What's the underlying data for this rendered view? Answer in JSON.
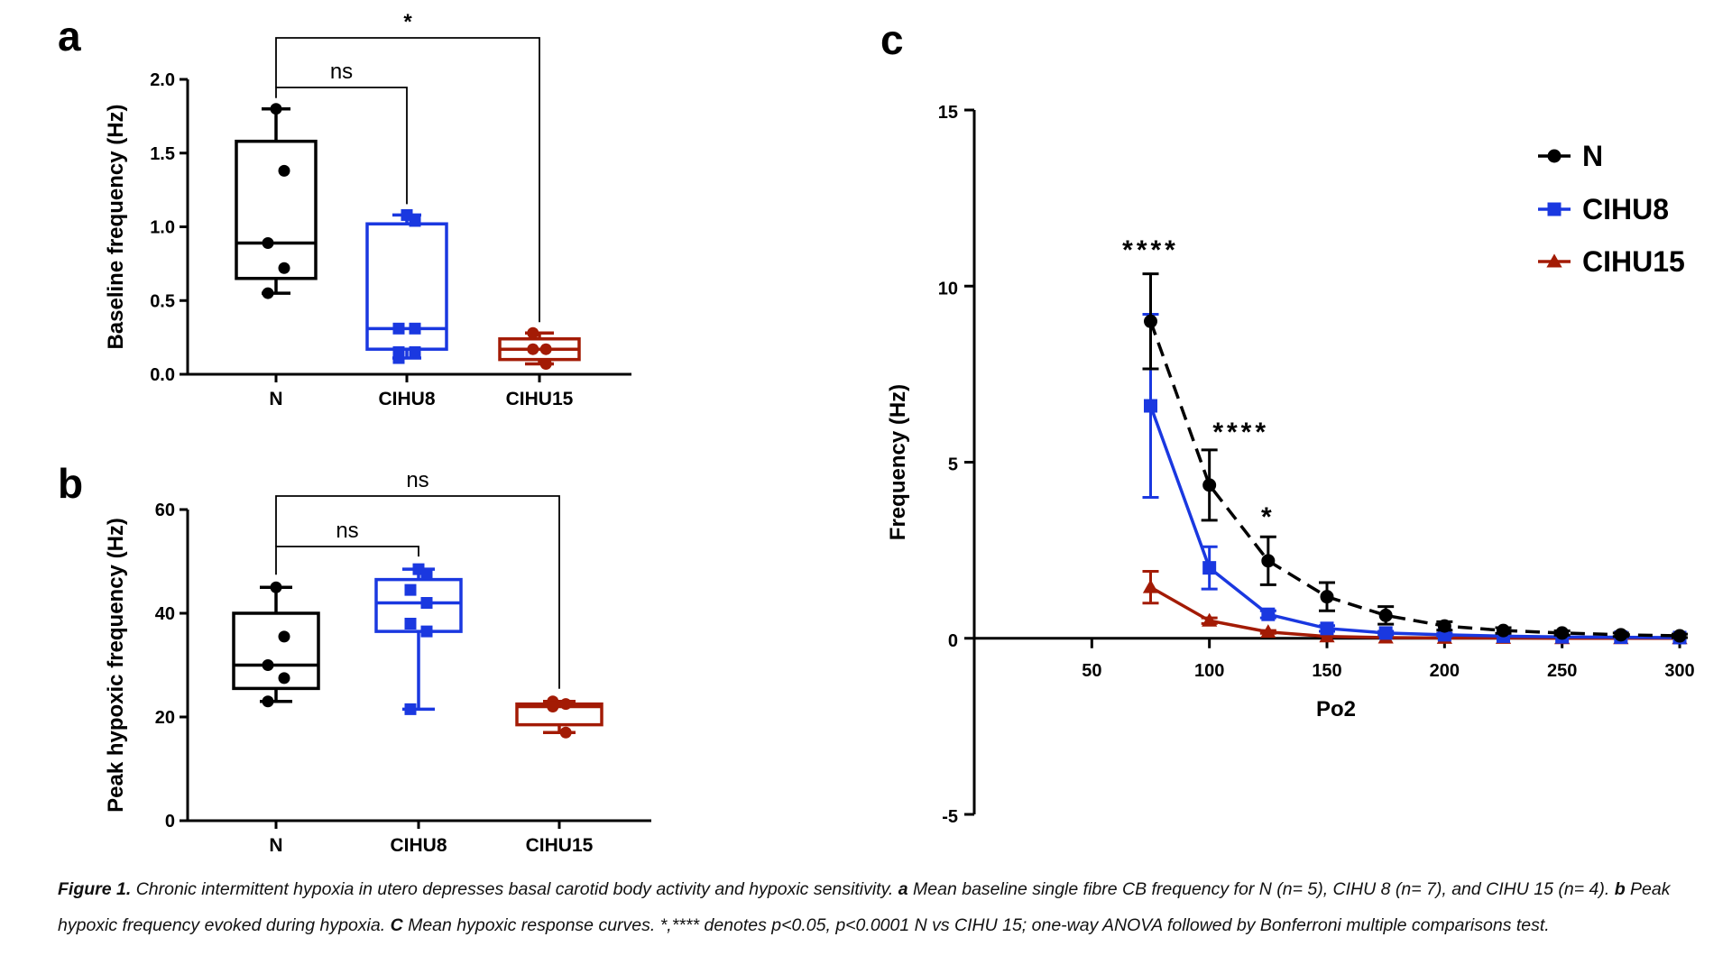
{
  "figure": {
    "panels": [
      "a",
      "b",
      "c"
    ]
  },
  "colors": {
    "N": "#000000",
    "CIHU8": "#1a38e0",
    "CIHU15": "#a31b05"
  },
  "caption": {
    "label": "Figure 1.",
    "part1": " Chronic intermittent hypoxia in utero depresses basal carotid body activity and hypoxic sensitivity. ",
    "a_label": "a",
    "part2": " Mean baseline single fibre CB frequency for N (n= 5), CIHU 8 (n= 7), and CIHU 15 (n= 4). ",
    "b_label": "b",
    "part3": " Peak hypoxic frequency evoked during hypoxia. ",
    "c_label": "C",
    "part4": "   Mean hypoxic response curves. *,**** denotes p<0.05, p<0.0001 N vs CIHU 15; one-way ANOVA followed by Bonferroni multiple comparisons test."
  },
  "chart_data": [
    {
      "panel": "a",
      "type": "box",
      "ylabel": "Baseline frequency (Hz)",
      "ylim": [
        0,
        2.0
      ],
      "yticks": [
        "0.0",
        "0.5",
        "1.0",
        "1.5",
        "2.0"
      ],
      "categories": [
        "N",
        "CIHU8",
        "CIHU15"
      ],
      "boxes": [
        {
          "name": "N",
          "min": 0.55,
          "q1": 0.65,
          "median": 0.89,
          "q3": 1.58,
          "max": 1.8,
          "points": [
            1.8,
            1.38,
            0.89,
            0.72,
            0.55
          ],
          "marker": "circle"
        },
        {
          "name": "CIHU8",
          "min": 0.11,
          "q1": 0.17,
          "median": 0.31,
          "q3": 1.02,
          "max": 1.08,
          "points": [
            1.08,
            1.04,
            0.31,
            0.31,
            0.15,
            0.15,
            0.11
          ],
          "marker": "square"
        },
        {
          "name": "CIHU15",
          "min": 0.07,
          "q1": 0.1,
          "median": 0.17,
          "q3": 0.24,
          "max": 0.28,
          "points": [
            0.28,
            0.17,
            0.17,
            0.07
          ],
          "marker": "circle"
        }
      ],
      "comparisons": [
        {
          "from": "N",
          "to": "CIHU8",
          "label": "ns"
        },
        {
          "from": "N",
          "to": "CIHU15",
          "label": "*"
        }
      ]
    },
    {
      "panel": "b",
      "type": "box",
      "ylabel": "Peak hypoxic frequency (Hz)",
      "ylim": [
        0,
        60
      ],
      "yticks": [
        "0",
        "20",
        "40",
        "60"
      ],
      "categories": [
        "N",
        "CIHU8",
        "CIHU15"
      ],
      "boxes": [
        {
          "name": "N",
          "min": 23.0,
          "q1": 25.5,
          "median": 30.0,
          "q3": 40.0,
          "max": 45.0,
          "points": [
            45.0,
            35.5,
            30.0,
            27.5,
            23.0
          ],
          "marker": "circle"
        },
        {
          "name": "CIHU8",
          "min": 21.5,
          "q1": 36.5,
          "median": 42.0,
          "q3": 46.5,
          "max": 48.5,
          "points": [
            48.5,
            47.5,
            44.5,
            42.0,
            38.0,
            36.5,
            21.5
          ],
          "marker": "square"
        },
        {
          "name": "CIHU15",
          "min": 17.0,
          "q1": 18.5,
          "median": 22.0,
          "q3": 22.5,
          "max": 23.0,
          "points": [
            23.0,
            22.5,
            22.0,
            17.0
          ],
          "marker": "circle"
        }
      ],
      "comparisons": [
        {
          "from": "N",
          "to": "CIHU8",
          "label": "ns"
        },
        {
          "from": "N",
          "to": "CIHU15",
          "label": "ns"
        }
      ]
    },
    {
      "panel": "c",
      "type": "line",
      "xlabel": "Po2",
      "ylabel": "Frequency (Hz)",
      "xlim": [
        0,
        300
      ],
      "ylim": [
        -5,
        15
      ],
      "xticks": [
        "50",
        "100",
        "150",
        "200",
        "250",
        "300"
      ],
      "yticks": [
        "-5",
        "0",
        "5",
        "10",
        "15"
      ],
      "legend_position": "top-right",
      "series": [
        {
          "name": "N",
          "marker": "circle",
          "style": "dashed",
          "x": [
            75,
            100,
            125,
            150,
            175,
            200,
            225,
            250,
            275,
            300
          ],
          "y": [
            9.0,
            4.35,
            2.2,
            1.18,
            0.65,
            0.35,
            0.22,
            0.15,
            0.1,
            0.07
          ],
          "err": [
            1.35,
            1.0,
            0.68,
            0.4,
            0.25,
            0.12,
            0.08,
            0.06,
            0.05,
            0.05
          ]
        },
        {
          "name": "CIHU8",
          "marker": "square",
          "style": "solid",
          "x": [
            75,
            100,
            125,
            150,
            175,
            200,
            225,
            250,
            275,
            300
          ],
          "y": [
            6.6,
            2.0,
            0.68,
            0.28,
            0.15,
            0.1,
            0.06,
            0.04,
            0.03,
            0.02
          ],
          "err": [
            2.6,
            0.6,
            0.1,
            0.08,
            0.05,
            0.04,
            0.02,
            0.02,
            0.01,
            0.01
          ]
        },
        {
          "name": "CIHU15",
          "marker": "triangle",
          "style": "solid",
          "x": [
            75,
            100,
            125,
            150,
            175,
            200,
            225,
            250,
            275,
            300
          ],
          "y": [
            1.45,
            0.5,
            0.18,
            0.05,
            0.02,
            0.01,
            0.01,
            0.0,
            0.0,
            0.0
          ],
          "err": [
            0.45,
            0.08,
            0.04,
            0.02,
            0.01,
            0.01,
            0.01,
            0.0,
            0.0,
            0.0
          ]
        }
      ],
      "annotations": [
        {
          "x": 75,
          "label": "****"
        },
        {
          "x": 100,
          "label": "****"
        },
        {
          "x": 125,
          "label": "*"
        }
      ]
    }
  ]
}
